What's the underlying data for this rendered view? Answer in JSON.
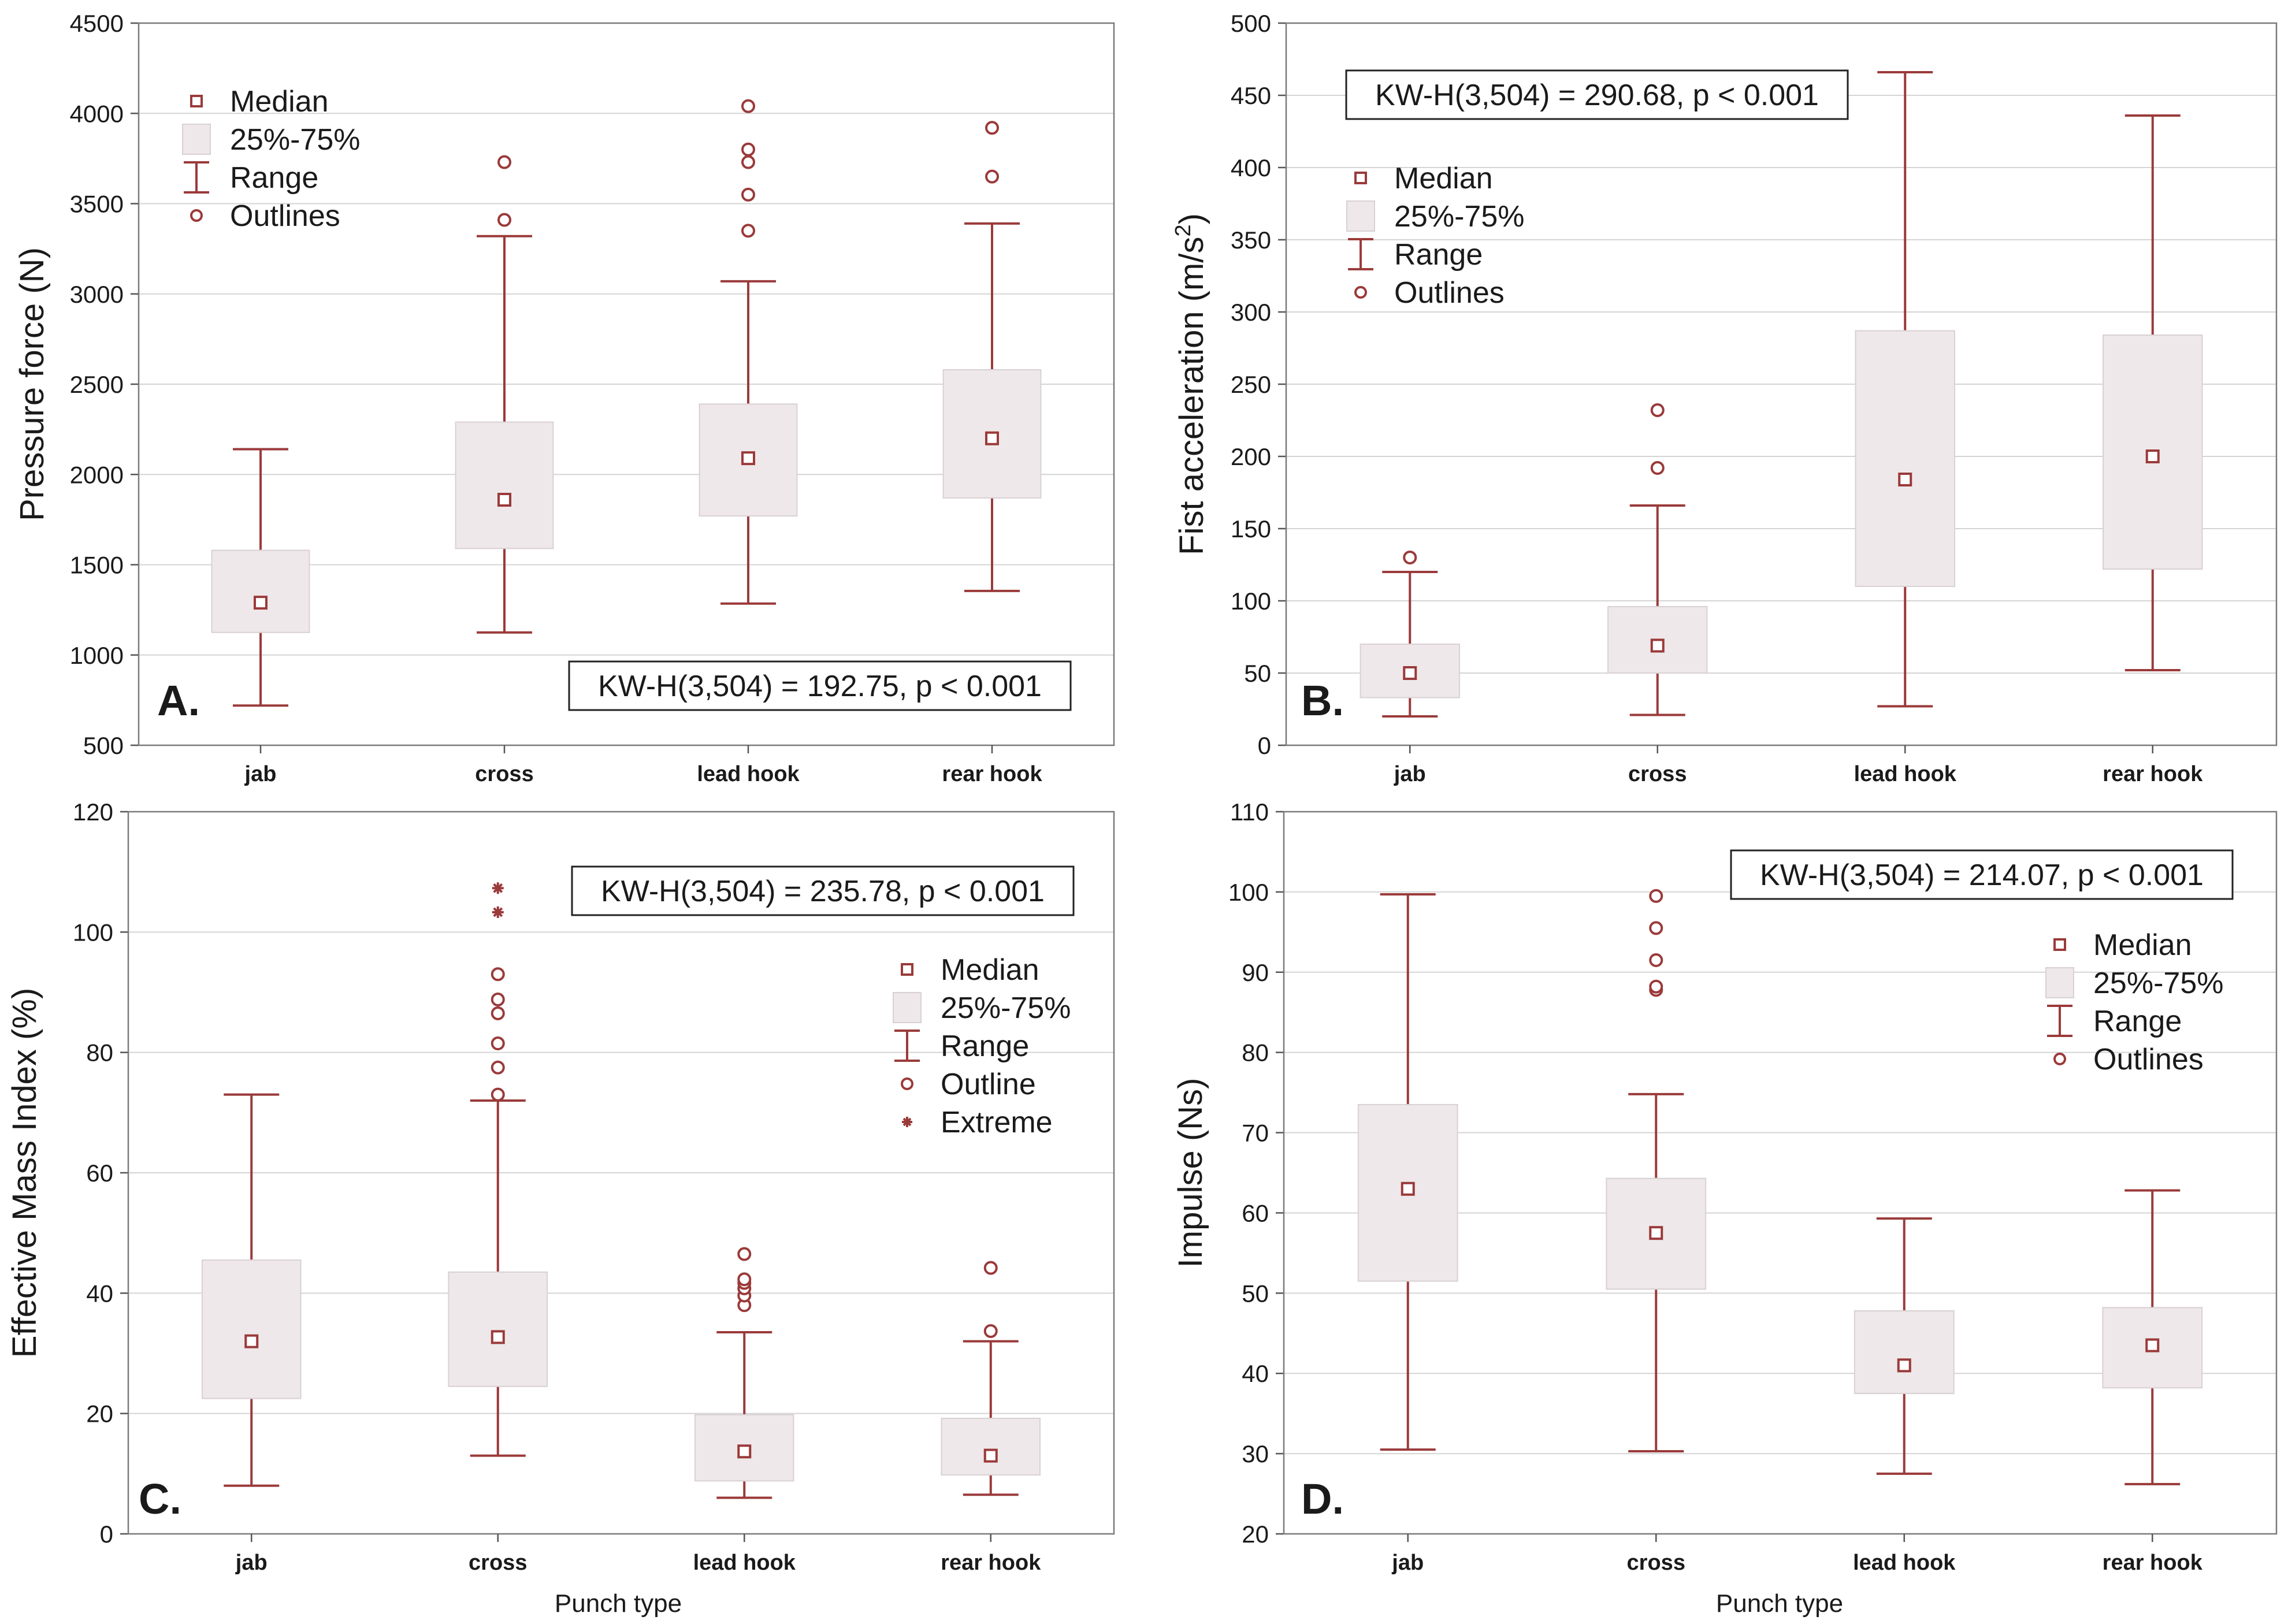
{
  "figure": {
    "xlabel": "Punch type",
    "colors": {
      "box_fill": "#eee8ea",
      "whisker": "#9b3a3a",
      "grid": "#d4d4d4"
    }
  },
  "chart_data": [
    {
      "id": "A",
      "type": "box",
      "panel_letter": "A.",
      "categories": [
        "jab",
        "cross",
        "lead hook",
        "rear hook"
      ],
      "ylabel": "Pressure force (N)",
      "xlabel": "",
      "ylim": [
        500,
        4500
      ],
      "yticks": [
        500,
        1000,
        1500,
        2000,
        2500,
        3000,
        3500,
        4000,
        4500
      ],
      "stat_text": "KW-H(3,504) = 192.75, p < 0.001",
      "legend": [
        "Median",
        "25%-75%",
        "Range",
        "Outlines"
      ],
      "boxes": [
        {
          "median": 1290,
          "q1": 1125,
          "q3": 1580,
          "min": 720,
          "max": 2140,
          "outliers": [],
          "extremes": []
        },
        {
          "median": 1860,
          "q1": 1590,
          "q3": 2290,
          "min": 1125,
          "max": 3320,
          "outliers": [
            3410,
            3730
          ],
          "extremes": []
        },
        {
          "median": 2090,
          "q1": 1770,
          "q3": 2390,
          "min": 1285,
          "max": 3070,
          "outliers": [
            3350,
            3550,
            3730,
            3800,
            4040
          ],
          "extremes": []
        },
        {
          "median": 2200,
          "q1": 1870,
          "q3": 2580,
          "min": 1355,
          "max": 3390,
          "outliers": [
            3650,
            3920
          ],
          "extremes": []
        }
      ]
    },
    {
      "id": "B",
      "type": "box",
      "panel_letter": "B.",
      "categories": [
        "jab",
        "cross",
        "lead hook",
        "rear hook"
      ],
      "ylabel": "Fist acceleration (m/s",
      "ylabel_sup": "2",
      "ylabel_end": ")",
      "xlabel": "",
      "ylim": [
        0,
        500
      ],
      "yticks": [
        0,
        50,
        100,
        150,
        200,
        250,
        300,
        350,
        400,
        450,
        500
      ],
      "stat_text": "KW-H(3,504) = 290.68, p < 0.001",
      "legend": [
        "Median",
        "25%-75%",
        "Range",
        "Outlines"
      ],
      "boxes": [
        {
          "median": 50,
          "q1": 33,
          "q3": 70,
          "min": 20,
          "max": 120,
          "outliers": [
            130
          ],
          "extremes": []
        },
        {
          "median": 69,
          "q1": 50,
          "q3": 96,
          "min": 21,
          "max": 166,
          "outliers": [
            192,
            232
          ],
          "extremes": []
        },
        {
          "median": 184,
          "q1": 110,
          "q3": 287,
          "min": 27,
          "max": 466,
          "outliers": [],
          "extremes": []
        },
        {
          "median": 200,
          "q1": 122,
          "q3": 284,
          "min": 52,
          "max": 436,
          "outliers": [],
          "extremes": []
        }
      ]
    },
    {
      "id": "C",
      "type": "box",
      "panel_letter": "C.",
      "categories": [
        "jab",
        "cross",
        "lead hook",
        "rear hook"
      ],
      "ylabel": "Effective Mass Index (%)",
      "xlabel": "Punch type",
      "ylim": [
        0,
        120
      ],
      "yticks": [
        0,
        20,
        40,
        60,
        80,
        100,
        120
      ],
      "stat_text": "KW-H(3,504) = 235.78, p < 0.001",
      "legend": [
        "Median",
        "25%-75%",
        "Range",
        "Outline",
        "Extreme"
      ],
      "boxes": [
        {
          "median": 32,
          "q1": 22.5,
          "q3": 45.5,
          "min": 8,
          "max": 73,
          "outliers": [],
          "extremes": []
        },
        {
          "median": 32.7,
          "q1": 24.5,
          "q3": 43.5,
          "min": 13,
          "max": 72,
          "outliers": [
            73,
            77.5,
            81.5,
            86.5,
            88.8,
            93
          ],
          "extremes": [
            103.3,
            107.3
          ]
        },
        {
          "median": 13.7,
          "q1": 8.8,
          "q3": 19.8,
          "min": 6,
          "max": 33.5,
          "outliers": [
            38,
            39.6,
            40.8,
            41.7,
            42.3,
            46.5
          ],
          "extremes": []
        },
        {
          "median": 13,
          "q1": 9.8,
          "q3": 19.2,
          "min": 6.5,
          "max": 32,
          "outliers": [
            33.7,
            44.2
          ],
          "extremes": []
        }
      ]
    },
    {
      "id": "D",
      "type": "box",
      "panel_letter": "D.",
      "categories": [
        "jab",
        "cross",
        "lead hook",
        "rear hook"
      ],
      "ylabel": "Impulse (Ns)",
      "xlabel": "Punch type",
      "ylim": [
        20,
        110
      ],
      "yticks": [
        20,
        30,
        40,
        50,
        60,
        70,
        80,
        90,
        100,
        110
      ],
      "stat_text": "KW-H(3,504) = 214.07, p < 0.001",
      "legend": [
        "Median",
        "25%-75%",
        "Range",
        "Outlines"
      ],
      "boxes": [
        {
          "median": 63,
          "q1": 51.5,
          "q3": 73.5,
          "min": 30.5,
          "max": 99.7,
          "outliers": [],
          "extremes": []
        },
        {
          "median": 57.5,
          "q1": 50.5,
          "q3": 64.3,
          "min": 30.3,
          "max": 74.8,
          "outliers": [
            87.8,
            88.2,
            91.5,
            95.5,
            99.5
          ],
          "extremes": []
        },
        {
          "median": 41,
          "q1": 37.5,
          "q3": 47.8,
          "min": 27.5,
          "max": 59.3,
          "outliers": [],
          "extremes": []
        },
        {
          "median": 43.5,
          "q1": 38.2,
          "q3": 48.2,
          "min": 26.2,
          "max": 62.8,
          "outliers": [],
          "extremes": []
        }
      ]
    }
  ]
}
